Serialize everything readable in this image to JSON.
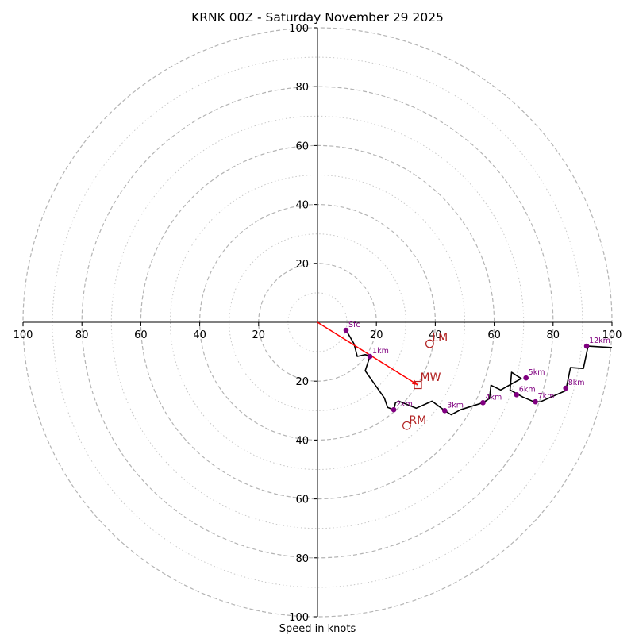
{
  "chart_data": {
    "type": "hodograph",
    "title": "KRNK 00Z - Saturday November 29 2025",
    "xlabel": "Speed in knots",
    "range": [
      -100,
      100
    ],
    "ring_major": [
      20,
      40,
      60,
      80,
      100
    ],
    "ring_minor": [
      10,
      30,
      50,
      70,
      90
    ],
    "x_ticks": [
      {
        "value": -100,
        "label": "100"
      },
      {
        "value": -80,
        "label": "80"
      },
      {
        "value": -60,
        "label": "60"
      },
      {
        "value": -40,
        "label": "40"
      },
      {
        "value": -20,
        "label": "20"
      },
      {
        "value": 20,
        "label": "20"
      },
      {
        "value": 40,
        "label": "40"
      },
      {
        "value": 60,
        "label": "60"
      },
      {
        "value": 80,
        "label": "80"
      },
      {
        "value": 100,
        "label": "100"
      }
    ],
    "y_ticks": [
      {
        "value": 100,
        "label": "100"
      },
      {
        "value": 80,
        "label": "80"
      },
      {
        "value": 60,
        "label": "60"
      },
      {
        "value": 40,
        "label": "40"
      },
      {
        "value": 20,
        "label": "20"
      },
      {
        "value": -20,
        "label": "20"
      },
      {
        "value": -40,
        "label": "40"
      },
      {
        "value": -60,
        "label": "60"
      },
      {
        "value": -80,
        "label": "80"
      },
      {
        "value": -100,
        "label": "100"
      }
    ],
    "trace": {
      "color": "#000000",
      "points": [
        [
          9.7,
          -2.7
        ],
        [
          12.4,
          -7.3
        ],
        [
          13.5,
          -11.6
        ],
        [
          16.2,
          -11.0
        ],
        [
          17.8,
          -11.6
        ],
        [
          16.2,
          -16.5
        ],
        [
          22.7,
          -25.7
        ],
        [
          23.8,
          -28.9
        ],
        [
          25.9,
          -29.7
        ],
        [
          26.5,
          -27.3
        ],
        [
          27.6,
          -26.8
        ],
        [
          33.5,
          -29.2
        ],
        [
          38.9,
          -26.8
        ],
        [
          43.2,
          -30.0
        ],
        [
          45.4,
          -31.4
        ],
        [
          48.6,
          -29.7
        ],
        [
          56.2,
          -27.3
        ],
        [
          58.4,
          -25.9
        ],
        [
          58.9,
          -21.4
        ],
        [
          62.2,
          -23.0
        ],
        [
          69.2,
          -19.1
        ],
        [
          65.9,
          -17.0
        ],
        [
          65.4,
          -23.0
        ],
        [
          69.7,
          -25.4
        ],
        [
          73.5,
          -27.0
        ],
        [
          75.7,
          -27.0
        ],
        [
          84.3,
          -23.2
        ],
        [
          85.9,
          -15.4
        ],
        [
          90.3,
          -15.7
        ],
        [
          91.9,
          -8.1
        ],
        [
          100.0,
          -8.6
        ]
      ]
    },
    "height_markers": {
      "color": "#800080",
      "points": [
        {
          "label": "Sfc",
          "u": 9.7,
          "v": -2.7
        },
        {
          "label": "1km",
          "u": 17.8,
          "v": -11.6
        },
        {
          "label": "2km",
          "u": 25.9,
          "v": -29.7
        },
        {
          "label": "3km",
          "u": 43.2,
          "v": -30.0
        },
        {
          "label": "4km",
          "u": 56.2,
          "v": -27.3
        },
        {
          "label": "5km",
          "u": 70.8,
          "v": -18.9
        },
        {
          "label": "6km",
          "u": 67.6,
          "v": -24.6
        },
        {
          "label": "7km",
          "u": 74.0,
          "v": -27.0
        },
        {
          "label": "8km",
          "u": 84.3,
          "v": -22.4
        },
        {
          "label": "12km",
          "u": 91.4,
          "v": -8.1
        }
      ]
    },
    "storm_motion": {
      "color": "#b22222",
      "arrow_color": "#ff0000",
      "mean_wind": {
        "label": "MW",
        "u": 34.1,
        "v": -21.3
      },
      "left_mover": {
        "label": "LM",
        "u": 38.1,
        "v": -7.3
      },
      "right_mover": {
        "label": "RM",
        "u": 30.3,
        "v": -35.1
      }
    }
  }
}
